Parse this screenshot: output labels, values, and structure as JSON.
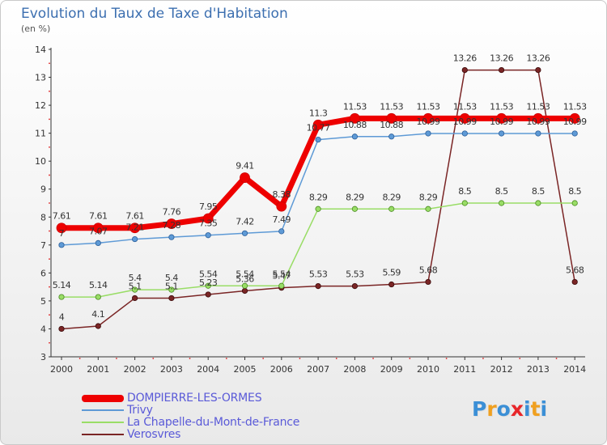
{
  "title": "Evolution du Taux de Taxe d'Habitation",
  "subtitle": "(en %)",
  "logo": {
    "text": "Proxiti",
    "colors": [
      "#3b8fd6",
      "#f0a020",
      "#3b8fd6",
      "#e8262a",
      "#3b8fd6",
      "#f0a020",
      "#3b8fd6"
    ]
  },
  "chart_data": {
    "type": "line",
    "x": [
      2000,
      2001,
      2002,
      2003,
      2004,
      2005,
      2006,
      2007,
      2008,
      2009,
      2010,
      2011,
      2012,
      2013,
      2014
    ],
    "ylim": [
      3,
      14
    ],
    "yticks": [
      3,
      4,
      5,
      6,
      7,
      8,
      9,
      10,
      11,
      12,
      13,
      14
    ],
    "grid": false,
    "legend_position": "bottom-left",
    "series": [
      {
        "name": "DOMPIERRE-LES-ORMES",
        "color": "#ee0000",
        "values": [
          7.61,
          7.61,
          7.61,
          7.76,
          7.95,
          9.41,
          8.38,
          11.3,
          11.53,
          11.53,
          11.53,
          11.53,
          11.53,
          11.53,
          11.53
        ],
        "labels": [
          "7.61",
          "7.61",
          "7.61",
          "7.76",
          "7.95",
          "9.41",
          "8.38",
          "11.3",
          "11.53",
          "11.53",
          "11.53",
          "11.53",
          "11.53",
          "11.53",
          "11.53"
        ]
      },
      {
        "name": "Trivy",
        "color": "#5e9ad6",
        "values": [
          7.0,
          7.07,
          7.21,
          7.28,
          7.35,
          7.42,
          7.49,
          10.77,
          10.88,
          10.88,
          10.99,
          10.99,
          10.99,
          10.99,
          10.99
        ],
        "labels": [
          "7",
          "7.07",
          "7.21",
          "7.28",
          "7.35",
          "7.42",
          "7.49",
          "10.77",
          "10.88",
          "10.88",
          "10.99",
          "10.99",
          "10.99",
          "10.99",
          "10.99"
        ]
      },
      {
        "name": "La Chapelle-du-Mont-de-France",
        "color": "#99dd66",
        "values": [
          5.14,
          5.14,
          5.4,
          5.4,
          5.54,
          5.54,
          5.54,
          8.29,
          8.29,
          8.29,
          8.29,
          8.5,
          8.5,
          8.5,
          8.5
        ],
        "labels": [
          "5.14",
          "5.14",
          "5.4",
          "5.4",
          "5.54",
          "5.54",
          "5.54",
          "8.29",
          "8.29",
          "8.29",
          "8.29",
          "8.5",
          "8.5",
          "8.5",
          "8.5"
        ]
      },
      {
        "name": "Verosvres",
        "color": "#7a2525",
        "values": [
          4.0,
          4.1,
          5.1,
          5.1,
          5.23,
          5.36,
          5.47,
          5.53,
          5.53,
          5.59,
          5.68,
          13.26,
          13.26,
          13.26,
          5.68
        ],
        "labels": [
          "4",
          "4.1",
          "5.1",
          "5.1",
          "5.23",
          "5.36",
          "5.47",
          "5.53",
          "5.53",
          "5.59",
          "5.68",
          "13.26",
          "13.26",
          "13.26",
          "5.68"
        ]
      }
    ]
  }
}
